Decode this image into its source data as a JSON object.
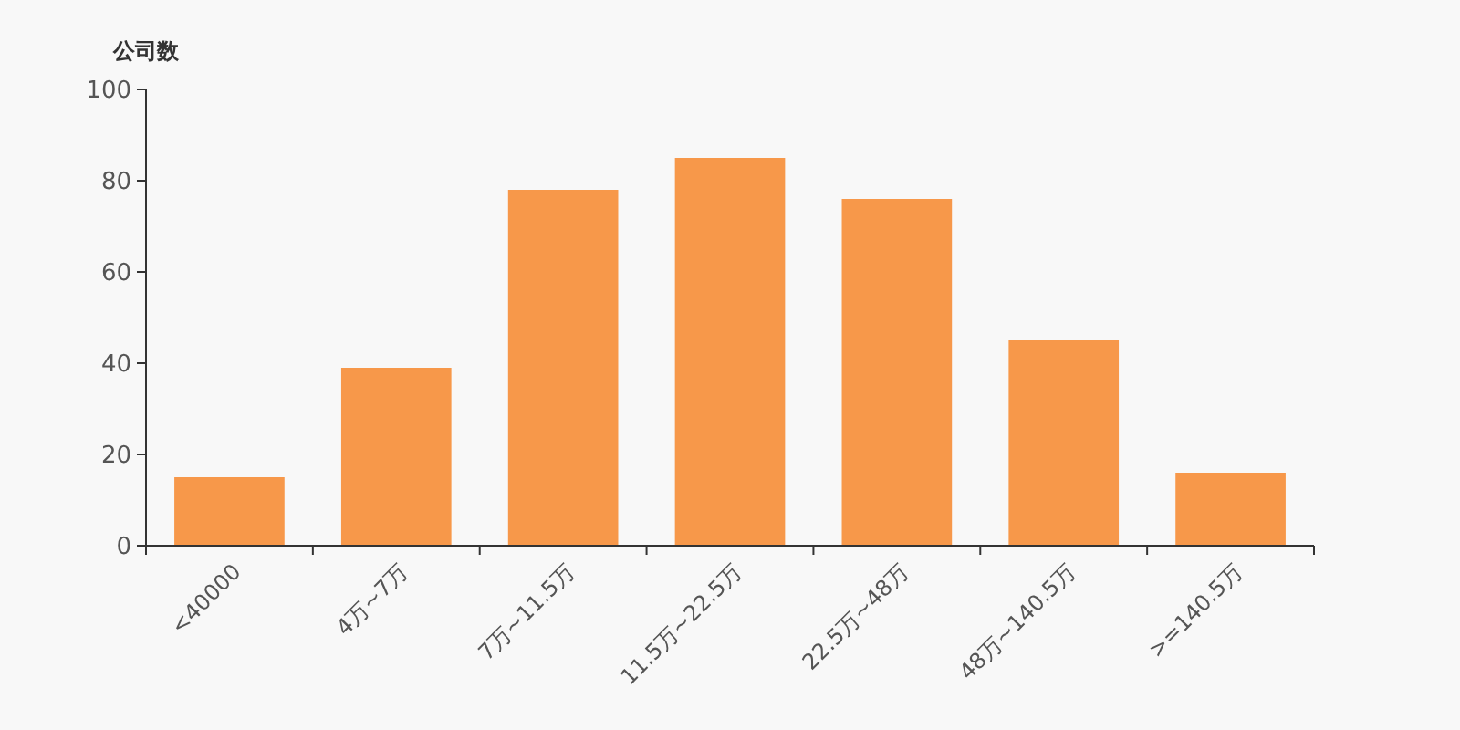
{
  "chart_data": {
    "type": "bar",
    "ylabel": "公司数",
    "categories": [
      "<40000",
      "4万~7万",
      "7万~11.5万",
      "11.5万~22.5万",
      "22.5万~48万",
      "48万~140.5万",
      ">=140.5万"
    ],
    "values": [
      15,
      39,
      78,
      85,
      76,
      45,
      16
    ],
    "color": "#f7984a",
    "ylim": [
      0,
      100
    ],
    "yticks": [
      0,
      20,
      40,
      60,
      80,
      100
    ],
    "grid": false
  }
}
